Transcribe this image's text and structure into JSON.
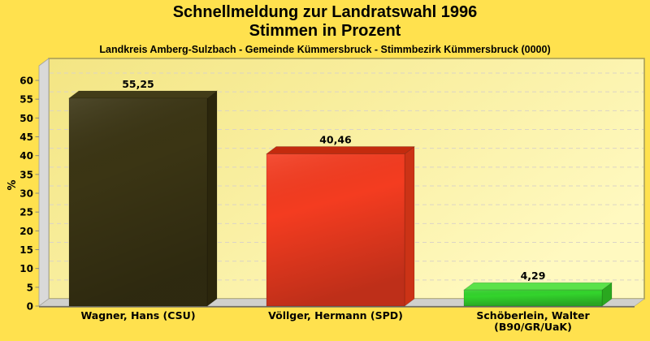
{
  "page": {
    "background": "#FFE14E"
  },
  "header": {
    "title_line1": "Schnellmeldung zur Landratswahl 1996",
    "title_line2": "Stimmen in Prozent",
    "subtitle": "Landkreis Amberg-Sulzbach - Gemeinde Kümmersbruck - Stimmbezirk Kümmersbruck (0000)"
  },
  "chart_data": {
    "type": "bar",
    "style": "3d-column",
    "title": "Schnellmeldung zur Landratswahl 1996 — Stimmen in Prozent",
    "subtitle": "Landkreis Amberg-Sulzbach - Gemeinde Kümmersbruck - Stimmbezirk Kümmersbruck (0000)",
    "categories": [
      "Wagner, Hans (CSU)",
      "Völlger, Hermann (SPD)",
      "Schöberlein, Walter (B90/GR/UaK)"
    ],
    "category_lines": [
      [
        "Wagner, Hans (CSU)"
      ],
      [
        "Völlger, Hermann (SPD)"
      ],
      [
        "Schöberlein, Walter",
        "(B90/GR/UaK)"
      ]
    ],
    "values": [
      55.25,
      40.46,
      4.29
    ],
    "value_labels": [
      "55,25",
      "40,46",
      "4,29"
    ],
    "ylabel": "%",
    "xlabel": "",
    "ylim": [
      0,
      60
    ],
    "ytick_step": 5,
    "yticks": [
      0,
      5,
      10,
      15,
      20,
      25,
      30,
      35,
      40,
      45,
      50,
      55,
      60
    ],
    "grid": true,
    "legend": "none",
    "bar_colors": [
      {
        "front": "#3B3514",
        "front_dark": "#2A250C",
        "top": "#423C18",
        "side": "#2B260C"
      },
      {
        "front": "#F43C20",
        "front_dark": "#DD2E10",
        "top": "#C32B0E",
        "side": "#CC3316"
      },
      {
        "front": "#33D42C",
        "front_dark": "#27BC1F",
        "top": "#5BE24A",
        "side": "#2AA81F"
      }
    ],
    "plot_colors": {
      "wall_dark": "#F3E583",
      "wall_light": "#FFF9C0",
      "wall_border": "#A39A56",
      "side_wall": "#D9D9D9",
      "side_wall_edge": "#A2A29A",
      "floor": "#D0D0CD",
      "floor_front_edge": "#6F6D64",
      "grid": "#DBD4C6",
      "tick": "#8A8A82"
    }
  }
}
